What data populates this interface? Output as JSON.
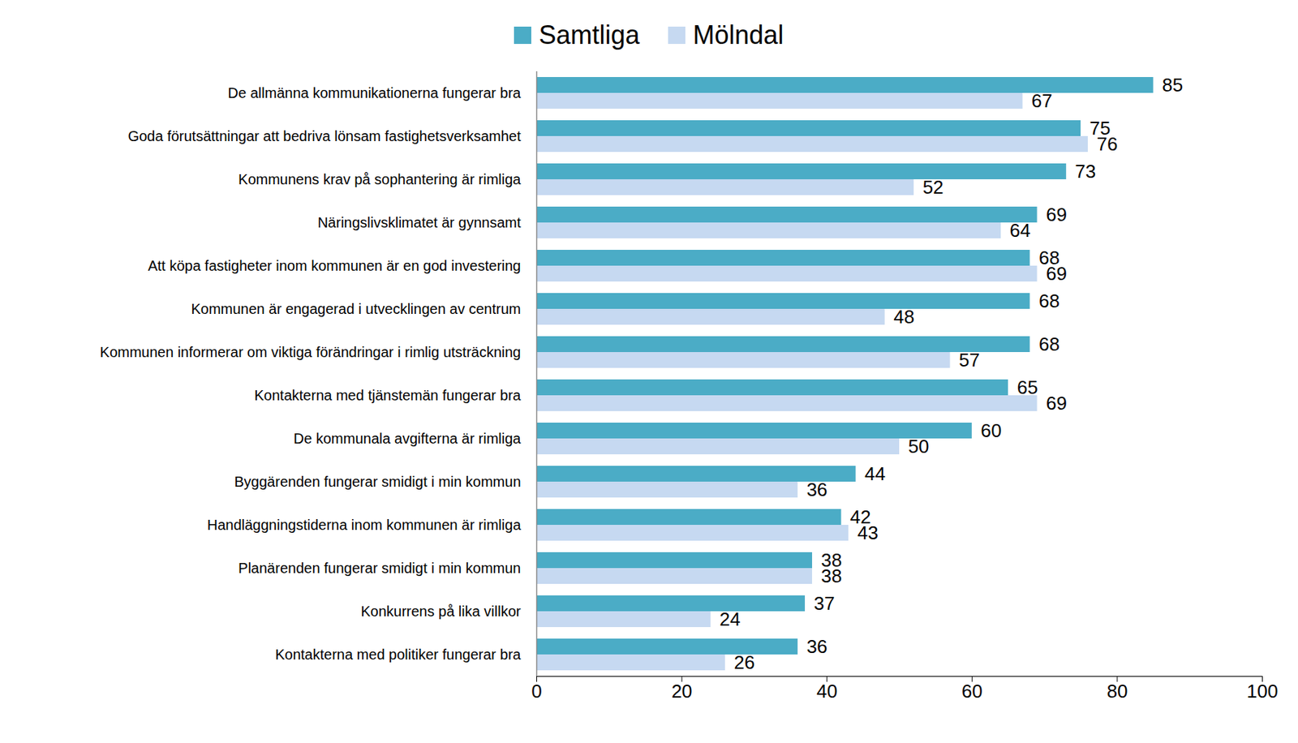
{
  "chart_data": {
    "type": "bar",
    "orientation": "horizontal",
    "categories": [
      "De allmänna kommunikationerna fungerar bra",
      "Goda förutsättningar att bedriva lönsam fastighetsverksamhet",
      "Kommunens krav på sophantering är rimliga",
      "Näringslivsklimatet är gynnsamt",
      "Att köpa fastigheter inom kommunen är en god investering",
      "Kommunen är engagerad i utvecklingen av centrum",
      "Kommunen informerar om viktiga förändringar i rimlig utsträckning",
      "Kontakterna med tjänstemän fungerar bra",
      "De kommunala avgifterna är rimliga",
      "Byggärenden fungerar smidigt i min kommun",
      "Handläggningstiderna inom kommunen är rimliga",
      "Planärenden fungerar smidigt i min kommun",
      "Konkurrens på lika villkor",
      "Kontakterna med politiker fungerar bra"
    ],
    "series": [
      {
        "name": "Samtliga",
        "color": "#4bacc6",
        "values": [
          85,
          75,
          73,
          69,
          68,
          68,
          68,
          65,
          60,
          44,
          42,
          38,
          37,
          36
        ]
      },
      {
        "name": "Mölndal",
        "color": "#c6d9f1",
        "values": [
          67,
          76,
          52,
          64,
          69,
          48,
          57,
          69,
          50,
          36,
          43,
          38,
          24,
          26
        ]
      }
    ],
    "xlim": [
      0,
      100
    ],
    "xticks": [
      0,
      20,
      40,
      60,
      80,
      100
    ],
    "grid": false,
    "legend": "top",
    "data_labels": true
  }
}
